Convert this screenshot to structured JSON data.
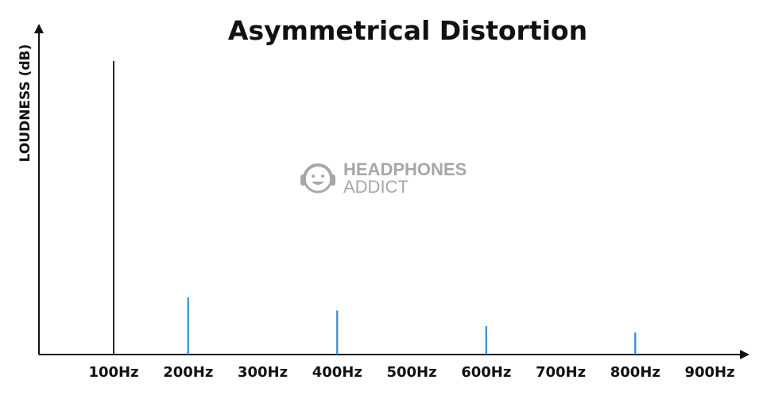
{
  "chart_data": {
    "type": "bar",
    "title": "Asymmetrical Distortion",
    "xlabel": "",
    "ylabel": "LOUDNESS (dB)",
    "x_ticks": [
      "100Hz",
      "200Hz",
      "300Hz",
      "400Hz",
      "500Hz",
      "600Hz",
      "700Hz",
      "800Hz",
      "900Hz"
    ],
    "x": [
      100,
      200,
      400,
      600,
      800
    ],
    "values": [
      1.0,
      0.195,
      0.15,
      0.097,
      0.075
    ],
    "ylim": [
      0,
      1.1
    ],
    "grid": false,
    "legend": "none",
    "colors": {
      "fundamental": "#111111",
      "harmonic": "#2e8ae6",
      "axis": "#111111"
    }
  },
  "watermark": {
    "line1": "HEADPHONES",
    "line2": "ADDICT",
    "icon": "headphones-face-logo"
  }
}
